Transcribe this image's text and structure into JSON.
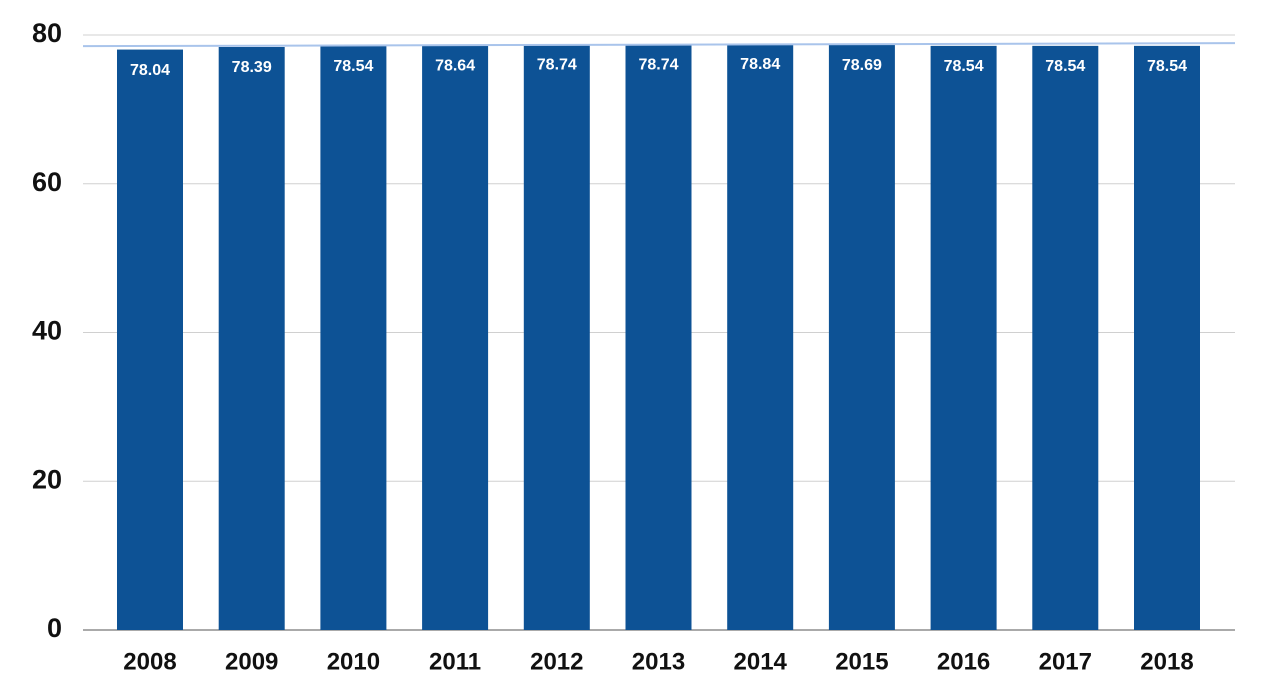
{
  "chart_data": {
    "type": "bar",
    "categories": [
      "2008",
      "2009",
      "2010",
      "2011",
      "2012",
      "2013",
      "2014",
      "2015",
      "2016",
      "2017",
      "2018"
    ],
    "values": [
      78.04,
      78.39,
      78.54,
      78.64,
      78.74,
      78.74,
      78.84,
      78.69,
      78.54,
      78.54,
      78.54
    ],
    "color": "#0d5295",
    "ylim": [
      0,
      80
    ],
    "yticks": [
      0,
      20,
      40,
      60,
      80
    ],
    "grid": true,
    "trendline": {
      "color": "#a9c4eb",
      "values": [
        78.5,
        78.9
      ]
    }
  }
}
